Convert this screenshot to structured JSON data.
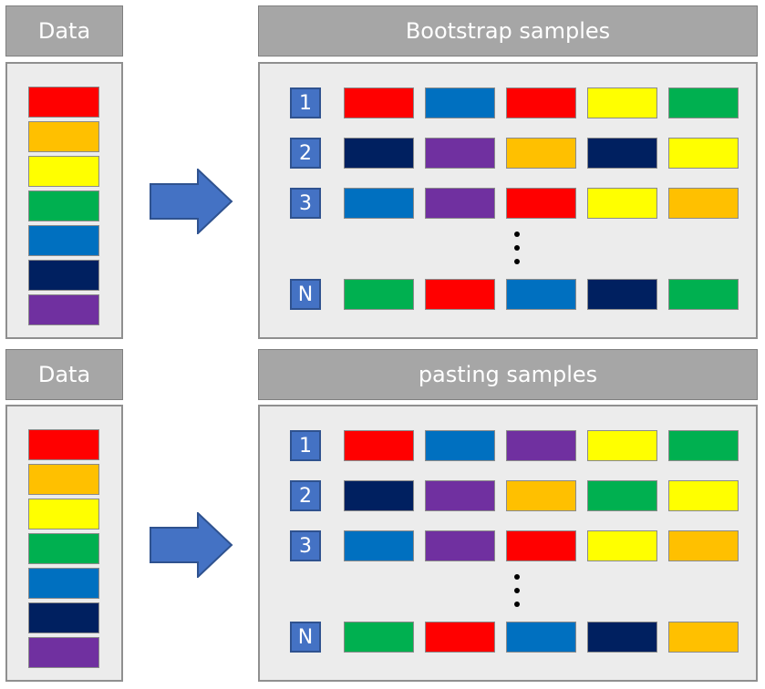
{
  "top": {
    "data_label": "Data",
    "samples_title": "Bootstrap samples",
    "data_blocks": [
      "#ff0000",
      "#ffc000",
      "#ffff00",
      "#00b050",
      "#0070c0",
      "#002060",
      "#7030a0"
    ],
    "rows": [
      {
        "label": "1",
        "colors": [
          "#ff0000",
          "#0070c0",
          "#ff0000",
          "#ffff00",
          "#00b050"
        ]
      },
      {
        "label": "2",
        "colors": [
          "#002060",
          "#7030a0",
          "#ffc000",
          "#002060",
          "#ffff00"
        ]
      },
      {
        "label": "3",
        "colors": [
          "#0070c0",
          "#7030a0",
          "#ff0000",
          "#ffff00",
          "#ffc000"
        ]
      },
      {
        "label": "N",
        "colors": [
          "#00b050",
          "#ff0000",
          "#0070c0",
          "#002060",
          "#00b050"
        ]
      }
    ]
  },
  "bottom": {
    "data_label": "Data",
    "samples_title": "pasting samples",
    "data_blocks": [
      "#ff0000",
      "#ffc000",
      "#ffff00",
      "#00b050",
      "#0070c0",
      "#002060",
      "#7030a0"
    ],
    "rows": [
      {
        "label": "1",
        "colors": [
          "#ff0000",
          "#0070c0",
          "#7030a0",
          "#ffff00",
          "#00b050"
        ]
      },
      {
        "label": "2",
        "colors": [
          "#002060",
          "#7030a0",
          "#ffc000",
          "#00b050",
          "#ffff00"
        ]
      },
      {
        "label": "3",
        "colors": [
          "#0070c0",
          "#7030a0",
          "#ff0000",
          "#ffff00",
          "#ffc000"
        ]
      },
      {
        "label": "N",
        "colors": [
          "#00b050",
          "#ff0000",
          "#0070c0",
          "#002060",
          "#ffc000"
        ]
      }
    ]
  },
  "arrow_color": "#4472c4"
}
